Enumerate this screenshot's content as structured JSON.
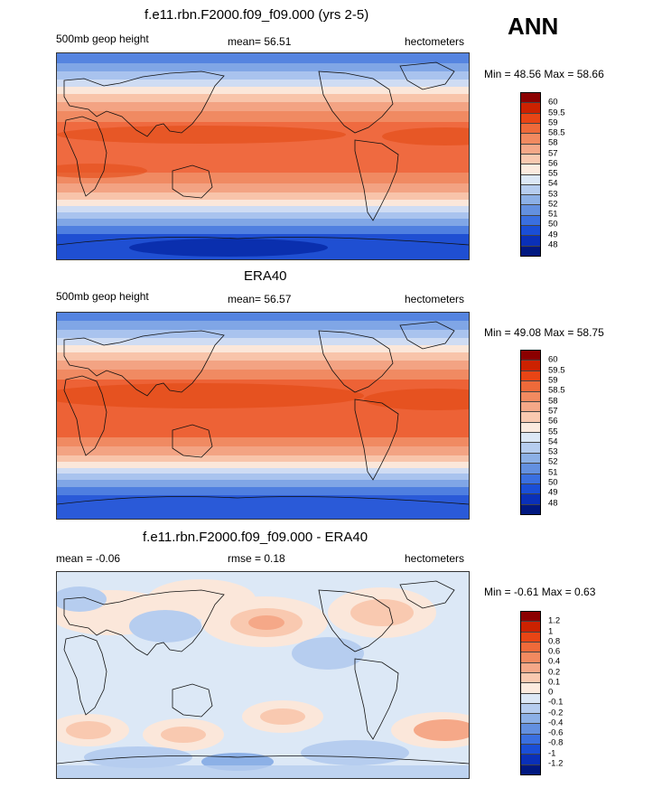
{
  "header": {
    "season": "ANN"
  },
  "panels": [
    {
      "title": "f.e11.rbn.F2000.f09_f09.000 (yrs 2-5)",
      "left": "500mb geop height",
      "center": "mean=  56.51",
      "right": "hectometers",
      "minmax": "Min =  48.56 Max =  58.66"
    },
    {
      "title": "ERA40",
      "left": "500mb geop height",
      "center": "mean=  56.57",
      "right": "hectometers",
      "minmax": "Min =  49.08 Max =  58.75"
    },
    {
      "title": "f.e11.rbn.F2000.f09_f09.000 - ERA40",
      "left": "mean =  -0.06",
      "center": "rmse =   0.18",
      "right": "hectometers",
      "minmax": "Min =  -0.61 Max =   0.63"
    }
  ],
  "colorbars": {
    "field": {
      "labels": [
        "60",
        "59.5",
        "59",
        "58.5",
        "58",
        "57",
        "56",
        "55",
        "54",
        "53",
        "52",
        "51",
        "50",
        "49",
        "48"
      ],
      "colors": [
        "#8b0000",
        "#cc2200",
        "#e84515",
        "#ee6a3a",
        "#f28a60",
        "#f5a888",
        "#f9c9b0",
        "#fcebdf",
        "#dce8f6",
        "#b6cdef",
        "#8cb0e6",
        "#6390e0",
        "#3a6fe0",
        "#1a4ed6",
        "#0a30b8",
        "#001880"
      ]
    },
    "diff": {
      "labels": [
        "1.2",
        "1",
        "0.8",
        "0.6",
        "0.4",
        "0.2",
        "0.1",
        "0",
        "-0.1",
        "-0.2",
        "-0.4",
        "-0.6",
        "-0.8",
        "-1",
        "-1.2"
      ],
      "colors": [
        "#8b0000",
        "#cc2200",
        "#e84515",
        "#ee6a3a",
        "#f28a60",
        "#f5a888",
        "#f9c9b0",
        "#fcebdf",
        "#dce8f6",
        "#b6cdef",
        "#8cb0e6",
        "#6390e0",
        "#3a6fe0",
        "#1a4ed6",
        "#0a30b8",
        "#001880"
      ]
    }
  }
}
